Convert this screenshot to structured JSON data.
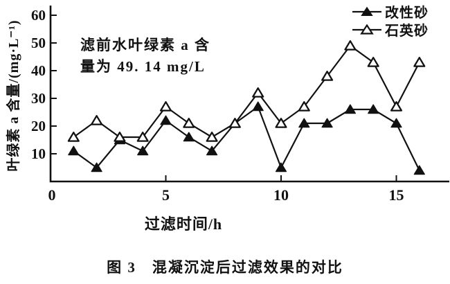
{
  "figure": {
    "caption": "图 3　混凝沉淀后过滤效果的对比"
  },
  "colors": {
    "ink": "#111111",
    "background": "#ffffff"
  },
  "chart_data": {
    "type": "line",
    "title": "",
    "xlabel": "过滤时间/h",
    "ylabel": "叶绿素 a 含量/(mg·L⁻¹)",
    "xlim": [
      0,
      17.3
    ],
    "ylim": [
      0,
      63.5
    ],
    "xticks": [
      0,
      5,
      10,
      15
    ],
    "yticks": [
      10,
      20,
      30,
      40,
      50,
      60
    ],
    "grid": false,
    "legend_position": "top-right",
    "annotation": [
      "滤前水叶绿素 a 含",
      "量为 49. 14 mg/L"
    ],
    "x": [
      1,
      2,
      3,
      4,
      5,
      6,
      7,
      8,
      9,
      10,
      11,
      12,
      13,
      14,
      15,
      16
    ],
    "series": [
      {
        "name": "改性砂",
        "key": "modified-sand",
        "marker": "filled-triangle",
        "values": [
          11,
          5,
          15,
          11,
          22,
          16,
          11,
          21,
          27,
          5,
          21,
          21,
          26,
          26,
          21,
          4
        ]
      },
      {
        "name": "石英砂",
        "key": "quartz-sand",
        "marker": "open-triangle",
        "values": [
          16,
          22,
          16,
          16,
          27,
          21,
          16,
          21,
          32,
          21,
          27,
          38,
          49,
          43,
          27,
          43
        ]
      }
    ]
  }
}
